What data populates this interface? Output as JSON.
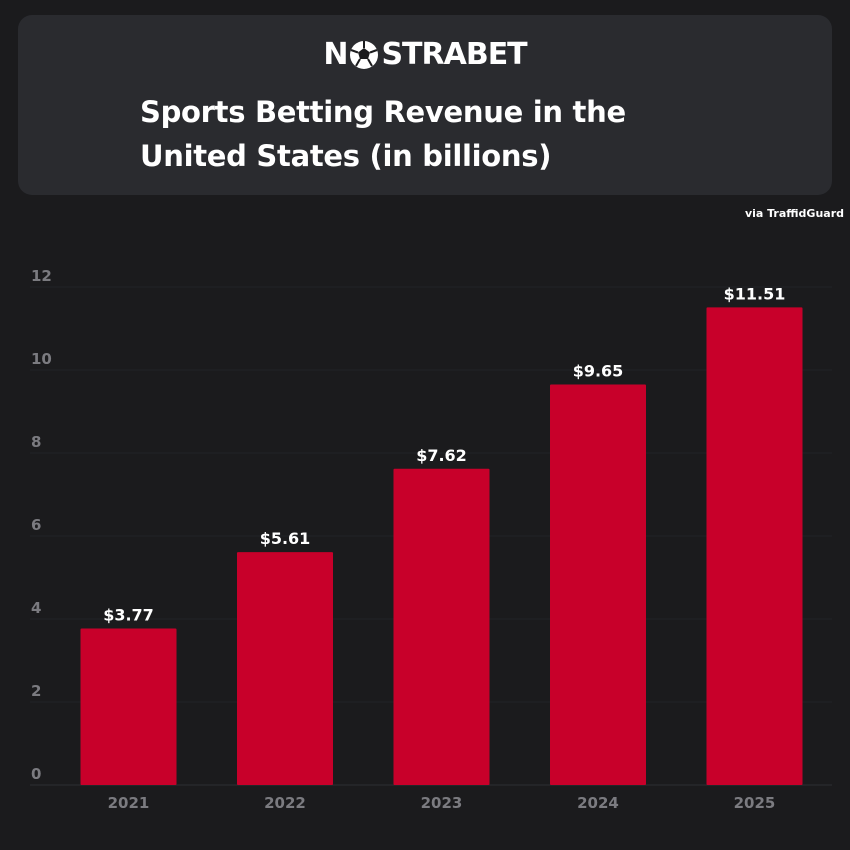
{
  "brand": {
    "logo_text": "NOSTRABET",
    "logo_before": "N",
    "logo_after": "STRABET",
    "accent_color": "#c8002a"
  },
  "header": {
    "title": "Sports Betting Revenue in the United States (in billions)"
  },
  "source": "via TraffidGuard",
  "chart_data": {
    "type": "bar",
    "title": "Sports Betting Revenue in the United States (in billions)",
    "categories": [
      "2021",
      "2022",
      "2023",
      "2024",
      "2025"
    ],
    "values": [
      3.77,
      5.61,
      7.62,
      9.65,
      11.51
    ],
    "data_labels": [
      "$3.77",
      "$5.61",
      "$7.62",
      "$9.65",
      "$11.51"
    ],
    "yticks": [
      0,
      2,
      4,
      6,
      8,
      10,
      12
    ],
    "ylim": [
      0,
      12
    ],
    "xlabel": "",
    "ylabel": "",
    "grid": true,
    "bar_color": "#c8002a",
    "label_color": "#ffffff",
    "tick_color": "#7b7b80",
    "grid_color": "#222326"
  }
}
